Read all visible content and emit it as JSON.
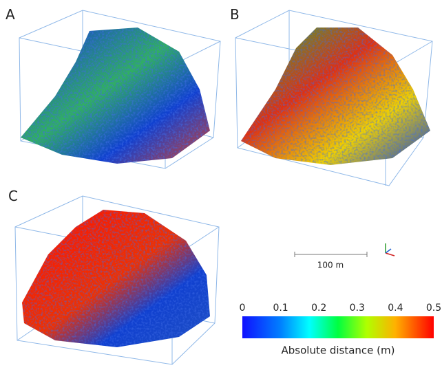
{
  "panels": [
    {
      "label": "A"
    },
    {
      "label": "B"
    },
    {
      "label": "C"
    }
  ],
  "scale_bar": {
    "label": "100 m"
  },
  "colorbar": {
    "label": "Absolute distance (m)",
    "lim": [
      0,
      0.5
    ],
    "ticks": [
      0,
      0.1,
      0.2,
      0.3,
      0.4,
      0.5
    ]
  }
}
